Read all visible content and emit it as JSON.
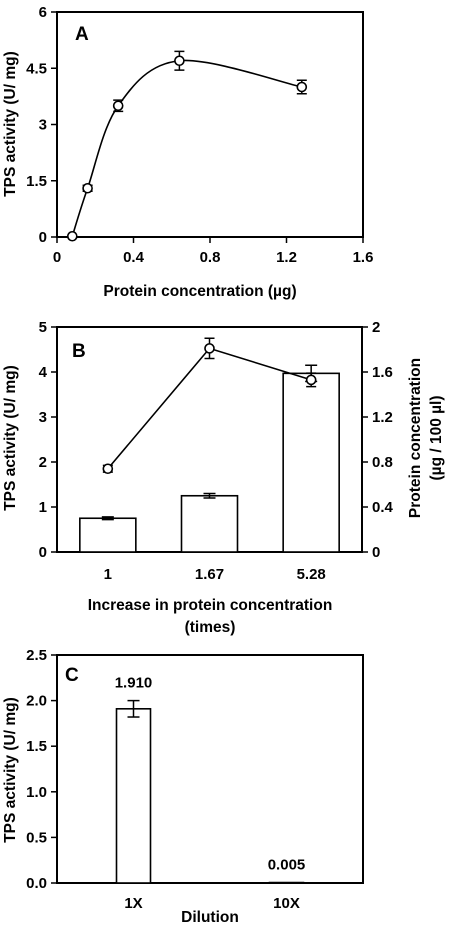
{
  "chart_data": [
    {
      "panel": "A",
      "type": "line",
      "xlabel": "Protein concentration (µg)",
      "ylabel": "TPS activity (U/ mg)",
      "xlim": [
        0,
        1.6
      ],
      "ylim": [
        0,
        6
      ],
      "x_ticks": [
        "0",
        "0.4",
        "0.8",
        "1.2",
        "1.6"
      ],
      "y_ticks": [
        "0",
        "1.5",
        "3",
        "4.5",
        "6"
      ],
      "series": [
        {
          "x": [
            0.08,
            0.16,
            0.32,
            0.64,
            1.28
          ],
          "y": [
            0.02,
            1.3,
            3.5,
            4.7,
            4.0
          ],
          "err": [
            0.0,
            0.08,
            0.15,
            0.25,
            0.18
          ]
        }
      ],
      "grid": false
    },
    {
      "panel": "B",
      "type": "bar",
      "xlabel": "Increase in protein concentration (times)",
      "xlabel_lines": [
        "Increase in protein concentration",
        "(times)"
      ],
      "ylabel": "TPS activity (U/ mg)",
      "y2label": "Protein concentration (µg / 100 µl)",
      "y2label_lines": [
        "Protein concentration",
        "(µg / 100 µl)"
      ],
      "categories": [
        "1",
        "1.67",
        "5.28"
      ],
      "ylim": [
        0,
        5
      ],
      "y2lim": [
        0,
        2
      ],
      "y_ticks": [
        "0",
        "1",
        "2",
        "3",
        "4",
        "5"
      ],
      "y2_ticks": [
        "0",
        "0.4",
        "0.8",
        "1.2",
        "1.6",
        "2"
      ],
      "series": [
        {
          "kind": "bar",
          "axis": "left",
          "values": [
            0.75,
            1.25,
            3.97
          ],
          "err": [
            0.03,
            0.05,
            0.18
          ]
        },
        {
          "kind": "line",
          "axis": "right",
          "values": [
            0.74,
            1.81,
            1.53
          ],
          "err": [
            0.03,
            0.09,
            0.06
          ]
        }
      ],
      "grid": false
    },
    {
      "panel": "C",
      "type": "bar",
      "xlabel": "Dilution",
      "ylabel": "TPS activity (U/ mg)",
      "categories": [
        "1X",
        "10X"
      ],
      "values": [
        1.91,
        0.005
      ],
      "err": [
        0.09,
        0.0
      ],
      "data_labels": [
        "1.910",
        "0.005"
      ],
      "ylim": [
        0,
        2.5
      ],
      "y_ticks": [
        "0.0",
        "0.5",
        "1.0",
        "1.5",
        "2.0",
        "2.5"
      ],
      "grid": false
    }
  ]
}
